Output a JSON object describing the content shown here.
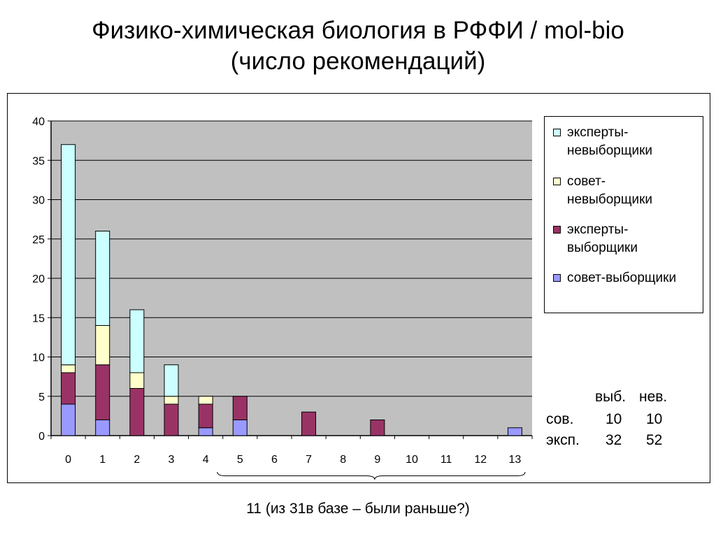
{
  "header": {
    "title_line1": "Физико-химическая биология в РФФИ / mol-bio",
    "title_line2": "(число рекомендаций)"
  },
  "chart_data": {
    "type": "bar",
    "stacked": true,
    "categories": [
      "0",
      "1",
      "2",
      "3",
      "4",
      "5",
      "6",
      "7",
      "8",
      "9",
      "10",
      "11",
      "12",
      "13"
    ],
    "series": [
      {
        "name": "совет-выборщики",
        "color": "#9999ff",
        "values": [
          4,
          2,
          0,
          0,
          1,
          2,
          0,
          0,
          0,
          0,
          0,
          0,
          0,
          1
        ]
      },
      {
        "name": "эксперты-выборщики",
        "color": "#993366",
        "values": [
          4,
          7,
          6,
          4,
          3,
          3,
          0,
          3,
          0,
          2,
          0,
          0,
          0,
          0
        ]
      },
      {
        "name": "совет-невыборщики",
        "color": "#ffffcc",
        "values": [
          1,
          5,
          2,
          1,
          1,
          0,
          0,
          0,
          0,
          0,
          0,
          0,
          0,
          0
        ]
      },
      {
        "name": "эксперты-невыборщики",
        "color": "#ccffff",
        "values": [
          28,
          12,
          8,
          4,
          0,
          0,
          0,
          0,
          0,
          0,
          0,
          0,
          0,
          0
        ]
      }
    ],
    "ylim": [
      0,
      40
    ],
    "yticks": [
      "0",
      "5",
      "10",
      "15",
      "20",
      "25",
      "30",
      "35",
      "40"
    ],
    "grid": true,
    "plot_background": "#c0c0c0",
    "legend_position": "right"
  },
  "legend": {
    "items": [
      {
        "line1": "эксперты-",
        "line2": "невыборщики",
        "color": "#ccffff"
      },
      {
        "line1": "совет-",
        "line2": "невыборщики",
        "color": "#ffffcc"
      },
      {
        "line1": "эксперты-",
        "line2": "выборщики",
        "color": "#993366"
      },
      {
        "line1": "совет-выборщики",
        "line2": "",
        "color": "#9999ff"
      }
    ]
  },
  "stats_table": {
    "col_headers": [
      "выб.",
      "нев."
    ],
    "rows": [
      {
        "label": "сов.",
        "values": [
          "10",
          "10"
        ]
      },
      {
        "label": "эксп.",
        "values": [
          "32",
          "52"
        ]
      }
    ]
  },
  "caption": "11 (из 31в базе – были раньше?)"
}
